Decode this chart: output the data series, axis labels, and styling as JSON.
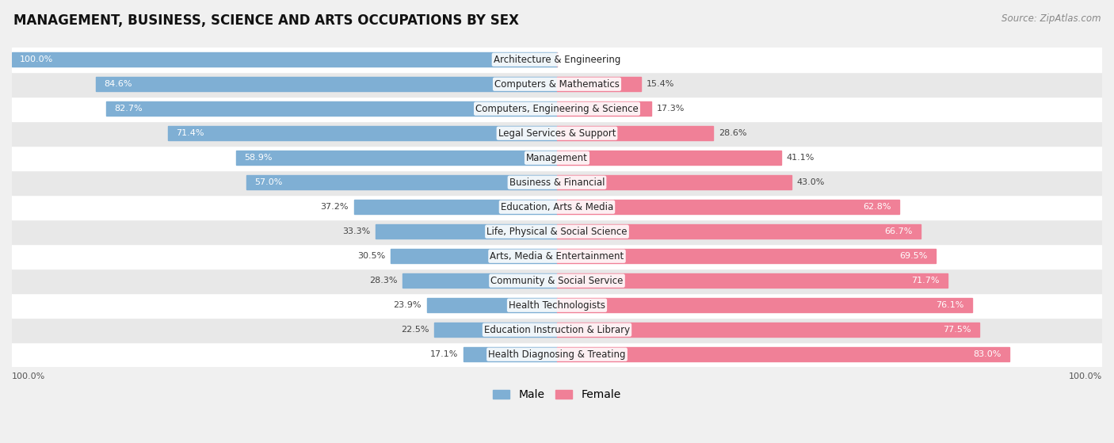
{
  "title": "MANAGEMENT, BUSINESS, SCIENCE AND ARTS OCCUPATIONS BY SEX",
  "source": "Source: ZipAtlas.com",
  "categories": [
    "Architecture & Engineering",
    "Computers & Mathematics",
    "Computers, Engineering & Science",
    "Legal Services & Support",
    "Management",
    "Business & Financial",
    "Education, Arts & Media",
    "Life, Physical & Social Science",
    "Arts, Media & Entertainment",
    "Community & Social Service",
    "Health Technologists",
    "Education Instruction & Library",
    "Health Diagnosing & Treating"
  ],
  "male_pct": [
    100.0,
    84.6,
    82.7,
    71.4,
    58.9,
    57.0,
    37.2,
    33.3,
    30.5,
    28.3,
    23.9,
    22.5,
    17.1
  ],
  "female_pct": [
    0.0,
    15.4,
    17.3,
    28.6,
    41.1,
    43.0,
    62.8,
    66.7,
    69.5,
    71.7,
    76.1,
    77.5,
    83.0
  ],
  "male_color": "#7fafd4",
  "female_color": "#f08097",
  "bg_color": "#f0f0f0",
  "row_bg_light": "#ffffff",
  "row_bg_dark": "#e8e8e8",
  "title_fontsize": 12,
  "label_fontsize": 8.5,
  "pct_fontsize": 8,
  "legend_fontsize": 10,
  "source_fontsize": 8.5
}
